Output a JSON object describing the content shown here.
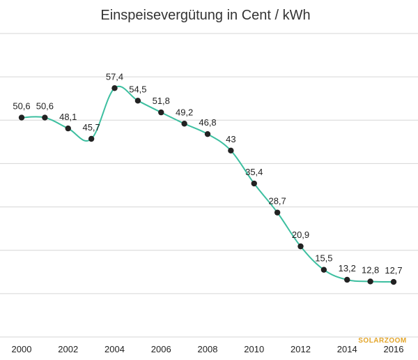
{
  "chart_data": {
    "type": "line",
    "title": "Einspeisevergütung in Cent / kWh",
    "xlabel": "",
    "ylabel": "",
    "x": [
      2000,
      2001,
      2002,
      2003,
      2004,
      2005,
      2006,
      2007,
      2008,
      2009,
      2010,
      2011,
      2012,
      2013,
      2014,
      2015,
      2016
    ],
    "x_tick_labels": [
      "2000",
      "2002",
      "2004",
      "2006",
      "2008",
      "2010",
      "2012",
      "2014",
      "2016"
    ],
    "series": [
      {
        "values": [
          50.6,
          50.6,
          48.1,
          45.7,
          57.4,
          54.5,
          51.8,
          49.2,
          46.8,
          43,
          35.4,
          28.7,
          20.9,
          15.5,
          13.2,
          12.8,
          12.7
        ],
        "point_labels": [
          "50,6",
          "50,6",
          "48,1",
          "45,7",
          "57,4",
          "54,5",
          "51,8",
          "49,2",
          "46,8",
          "43",
          "35,4",
          "28,7",
          "20,9",
          "15,5",
          "13,2",
          "12,8",
          "12,7"
        ]
      }
    ],
    "ylim": [
      0,
      70
    ],
    "grid": true,
    "line_color": "#3dbfa0",
    "marker_color": "#222222",
    "grid_color": "#d6d6d6"
  },
  "watermark": "SOLARZOOM",
  "watermark_color": "#e3a52a"
}
